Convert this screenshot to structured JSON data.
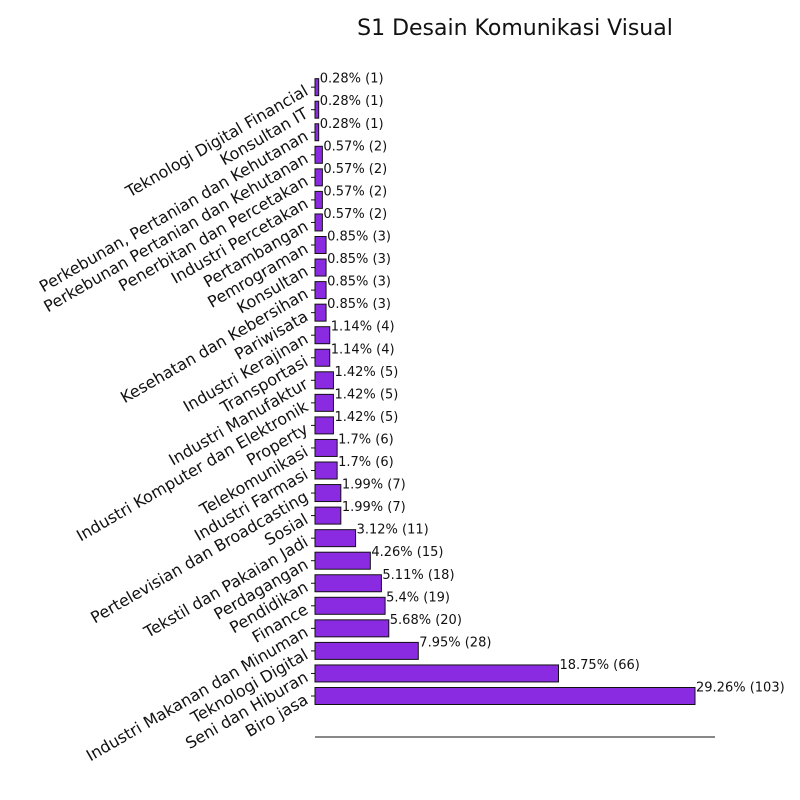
{
  "chart_data": {
    "type": "bar",
    "orientation": "horizontal",
    "title": "S1 Desain Komunikasi Visual",
    "xlabel": "",
    "ylabel": "",
    "bar_color": "#8a2be2",
    "bar_edge_color": "#111111",
    "grid": false,
    "xlim": [
      0,
      105
    ],
    "bars": [
      {
        "category": "Biro jasa",
        "value": 103,
        "label": "29.26% (103)"
      },
      {
        "category": "Seni dan Hiburan",
        "value": 66,
        "label": "18.75% (66)"
      },
      {
        "category": "Teknologi Digital",
        "value": 28,
        "label": "7.95% (28)"
      },
      {
        "category": "Industri Makanan dan Minuman",
        "value": 20,
        "label": "5.68% (20)"
      },
      {
        "category": "Finance",
        "value": 19,
        "label": "5.4% (19)"
      },
      {
        "category": "Pendidikan",
        "value": 18,
        "label": "5.11% (18)"
      },
      {
        "category": "Perdagangan",
        "value": 15,
        "label": "4.26% (15)"
      },
      {
        "category": "Tekstil dan Pakaian Jadi",
        "value": 11,
        "label": "3.12% (11)"
      },
      {
        "category": "Sosial",
        "value": 7,
        "label": "1.99% (7)"
      },
      {
        "category": "Pertelevisian dan Broadcasting",
        "value": 7,
        "label": "1.99% (7)"
      },
      {
        "category": "Industri Farmasi",
        "value": 6,
        "label": "1.7% (6)"
      },
      {
        "category": "Telekomunikasi",
        "value": 6,
        "label": "1.7% (6)"
      },
      {
        "category": "Property",
        "value": 5,
        "label": "1.42% (5)"
      },
      {
        "category": "Industri Komputer dan Elektronik",
        "value": 5,
        "label": "1.42% (5)"
      },
      {
        "category": "Industri Manufaktur",
        "value": 5,
        "label": "1.42% (5)"
      },
      {
        "category": "Transportasi",
        "value": 4,
        "label": "1.14% (4)"
      },
      {
        "category": "Industri Kerajinan",
        "value": 4,
        "label": "1.14% (4)"
      },
      {
        "category": "Pariwisata",
        "value": 3,
        "label": "0.85% (3)"
      },
      {
        "category": "Kesehatan dan Kebersihan",
        "value": 3,
        "label": "0.85% (3)"
      },
      {
        "category": "Konsultan",
        "value": 3,
        "label": "0.85% (3)"
      },
      {
        "category": "Pemrograman",
        "value": 3,
        "label": "0.85% (3)"
      },
      {
        "category": "Pertambangan",
        "value": 2,
        "label": "0.57% (2)"
      },
      {
        "category": "Industri Percetakan",
        "value": 2,
        "label": "0.57% (2)"
      },
      {
        "category": "Penerbitan dan Percetakan",
        "value": 2,
        "label": "0.57% (2)"
      },
      {
        "category": "Perkebunan Pertanian dan Kehutanan",
        "value": 2,
        "label": "0.57% (2)"
      },
      {
        "category": "Perkebunan, Pertanian dan Kehutanan",
        "value": 1,
        "label": "0.28% (1)"
      },
      {
        "category": "Konsultan IT",
        "value": 1,
        "label": "0.28% (1)"
      },
      {
        "category": "Teknologi Digital Financial",
        "value": 1,
        "label": "0.28% (1)"
      }
    ]
  }
}
